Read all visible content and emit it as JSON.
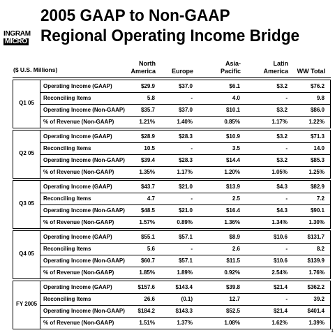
{
  "logo": {
    "line1": "INGRAM",
    "line2": "MICRO"
  },
  "title": {
    "line1": "2005 GAAP to Non-GAAP",
    "line2": "Regional Operating Income Bridge"
  },
  "units": "($ U.S. Millions)",
  "columns": [
    {
      "line1": "North",
      "line2": "America"
    },
    {
      "line1": "",
      "line2": "Europe"
    },
    {
      "line1": "Asia-",
      "line2": "Pacific"
    },
    {
      "line1": "Latin",
      "line2": "America"
    },
    {
      "line1": "",
      "line2": "WW Total"
    }
  ],
  "sections": [
    {
      "label": "Q1 05",
      "rows": [
        {
          "label": "Operating Income (GAAP)",
          "values": [
            "$29.9",
            "$37.0",
            "$6.1",
            "$3.2",
            "$76.2"
          ]
        },
        {
          "label": "Reconciling Items",
          "values": [
            "5.8",
            "-",
            "4.0",
            "-",
            "9.8"
          ]
        },
        {
          "label": "Operating Income (Non-GAAP)",
          "values": [
            "$35.7",
            "$37.0",
            "$10.1",
            "$3.2",
            "$86.0"
          ]
        },
        {
          "label": "% of Revenue (Non-GAAP)",
          "values": [
            "1.21%",
            "1.40%",
            "0.85%",
            "1.17%",
            "1.22%"
          ]
        }
      ]
    },
    {
      "label": "Q2 05",
      "rows": [
        {
          "label": "Operating Income (GAAP)",
          "values": [
            "$28.9",
            "$28.3",
            "$10.9",
            "$3.2",
            "$71.3"
          ]
        },
        {
          "label": "Reconciling Items",
          "values": [
            "10.5",
            "-",
            "3.5",
            "-",
            "14.0"
          ]
        },
        {
          "label": "Operating Income (Non-GAAP)",
          "values": [
            "$39.4",
            "$28.3",
            "$14.4",
            "$3.2",
            "$85.3"
          ]
        },
        {
          "label": "% of Revenue (Non-GAAP)",
          "values": [
            "1.35%",
            "1.17%",
            "1.20%",
            "1.05%",
            "1.25%"
          ]
        }
      ]
    },
    {
      "label": "Q3 05",
      "rows": [
        {
          "label": "Operating Income (GAAP)",
          "values": [
            "$43.7",
            "$21.0",
            "$13.9",
            "$4.3",
            "$82.9"
          ]
        },
        {
          "label": "Reconciling Items",
          "values": [
            "4.7",
            "-",
            "2.5",
            "-",
            "7.2"
          ]
        },
        {
          "label": "Operating Income (Non-GAAP)",
          "values": [
            "$48.5",
            "$21.0",
            "$16.4",
            "$4.3",
            "$90.1"
          ]
        },
        {
          "label": "% of Revenue (Non-GAAP)",
          "values": [
            "1.57%",
            "0.89%",
            "1.36%",
            "1.34%",
            "1.30%"
          ]
        }
      ]
    },
    {
      "label": "Q4 05",
      "rows": [
        {
          "label": "Operating Income (GAAP)",
          "values": [
            "$55.1",
            "$57.1",
            "$8.9",
            "$10.6",
            "$131.7"
          ]
        },
        {
          "label": "Reconciling Items",
          "values": [
            "5.6",
            "-",
            "2.6",
            "-",
            "8.2"
          ]
        },
        {
          "label": "Operating Income (Non-GAAP)",
          "values": [
            "$60.7",
            "$57.1",
            "$11.5",
            "$10.6",
            "$139.9"
          ]
        },
        {
          "label": "% of Revenue (Non-GAAP)",
          "values": [
            "1.85%",
            "1.89%",
            "0.92%",
            "2.54%",
            "1.76%"
          ]
        }
      ]
    },
    {
      "label": "FY 2005",
      "rows": [
        {
          "label": "Operating Income (GAAP)",
          "values": [
            "$157.6",
            "$143.4",
            "$39.8",
            "$21.4",
            "$362.2"
          ]
        },
        {
          "label": "Reconciling Items",
          "values": [
            "26.6",
            "(0.1)",
            "12.7",
            "-",
            "39.2"
          ]
        },
        {
          "label": "Operating Income (Non-GAAP)",
          "values": [
            "$184.2",
            "$143.3",
            "$52.5",
            "$21.4",
            "$401.4"
          ]
        },
        {
          "label": "% of Revenue (Non-GAAP)",
          "values": [
            "1.51%",
            "1.37%",
            "1.08%",
            "1.62%",
            "1.39%"
          ]
        }
      ]
    }
  ],
  "page_number": "1"
}
